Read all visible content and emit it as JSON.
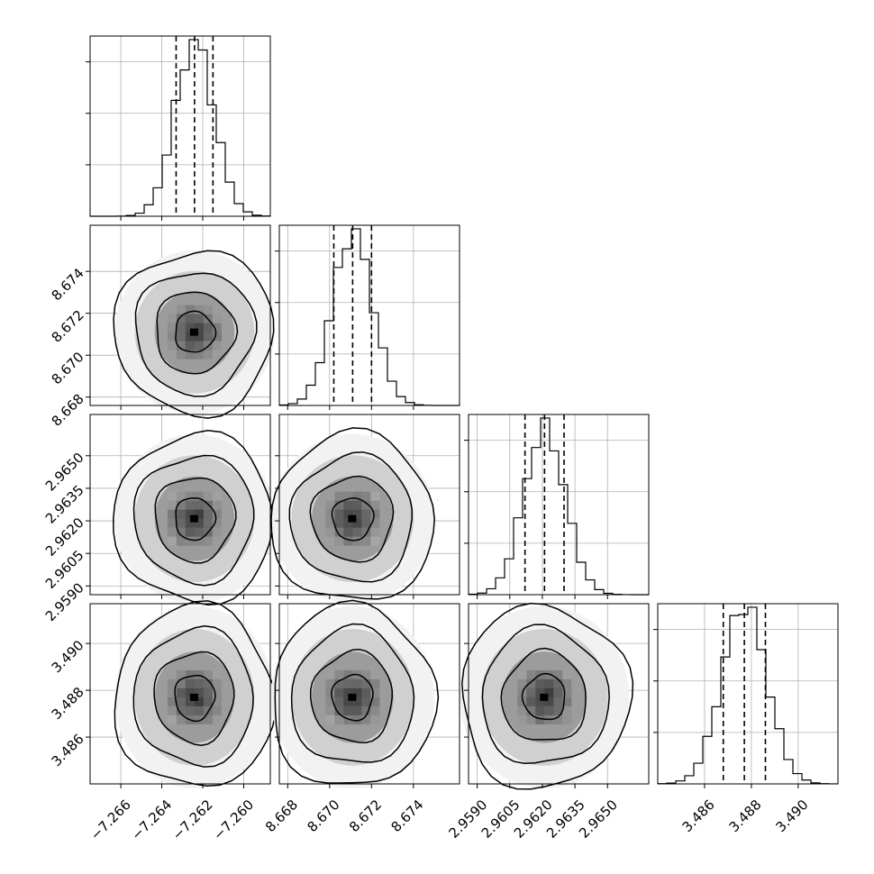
{
  "chart_data": {
    "type": "corner",
    "parameters": [
      {
        "mean": -7.2624,
        "sigma": 0.00095,
        "range": [
          -7.2675,
          -7.2587
        ],
        "ticks": [
          -7.266,
          -7.264,
          -7.262,
          -7.26
        ],
        "tick_labels": [
          "−7.266",
          "−7.264",
          "−7.262",
          "−7.260"
        ],
        "quantiles": [
          -7.2633,
          -7.2624,
          -7.2615
        ]
      },
      {
        "mean": 8.6711,
        "sigma": 0.00095,
        "range": [
          8.6676,
          8.6762
        ],
        "ticks": [
          8.668,
          8.67,
          8.672,
          8.674
        ],
        "tick_labels": [
          "8.668",
          "8.670",
          "8.672",
          "8.674"
        ],
        "quantiles": [
          8.6702,
          8.6711,
          8.672
        ]
      },
      {
        "mean": 2.9621,
        "sigma": 0.00095,
        "range": [
          2.9586,
          2.9669
        ],
        "ticks": [
          2.959,
          2.9605,
          2.962,
          2.9635,
          2.965
        ],
        "tick_labels": [
          "2.9590",
          "2.9605",
          "2.9620",
          "2.9635",
          "2.9650"
        ],
        "quantiles": [
          2.9612,
          2.9621,
          2.963
        ]
      },
      {
        "mean": 3.4877,
        "sigma": 0.00095,
        "range": [
          3.484,
          3.4917
        ],
        "ticks": [
          3.486,
          3.488,
          3.49
        ],
        "tick_labels": [
          "3.486",
          "3.488",
          "3.490"
        ],
        "quantiles": [
          3.4868,
          3.4877,
          3.4886
        ]
      }
    ],
    "histogram_bins": 20,
    "contour_levels_sigma": [
      0.5,
      1.0,
      1.5,
      2.0
    ],
    "grid": true,
    "xlabel": "",
    "ylabel": "",
    "title": ""
  }
}
